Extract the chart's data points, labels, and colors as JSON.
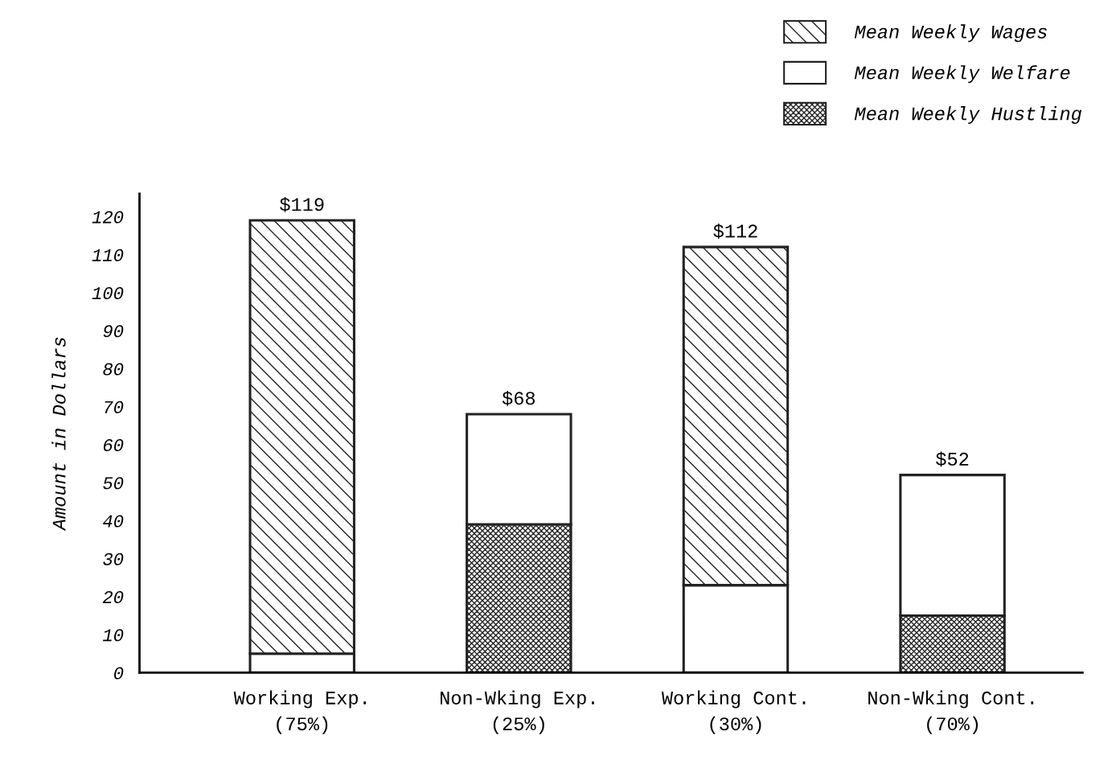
{
  "chart_data": {
    "type": "bar",
    "stacked": true,
    "ylabel": "Amount in Dollars",
    "categories": [
      "Working Exp.\n(75%)",
      "Non-Wking Exp.\n(25%)",
      "Working Cont.\n(30%)",
      "Non-Wking Cont.\n(70%)"
    ],
    "series": [
      {
        "name": "Mean Weekly Hustling",
        "color": "#222222",
        "values": [
          null,
          39,
          null,
          15
        ]
      },
      {
        "name": "Mean Weekly Welfare",
        "color": "#ffffff",
        "values": [
          5,
          29,
          23,
          37
        ]
      },
      {
        "name": "Mean Weekly Wages",
        "color": "#222222",
        "values": [
          114,
          null,
          89,
          null
        ]
      }
    ],
    "totals": [
      "$119",
      "$68",
      "$112",
      "$52"
    ],
    "ylim": [
      0,
      126
    ],
    "yticks": [
      0,
      10,
      20,
      30,
      40,
      50,
      60,
      70,
      80,
      90,
      100,
      110,
      120
    ],
    "grid": false,
    "legend": "top right"
  }
}
